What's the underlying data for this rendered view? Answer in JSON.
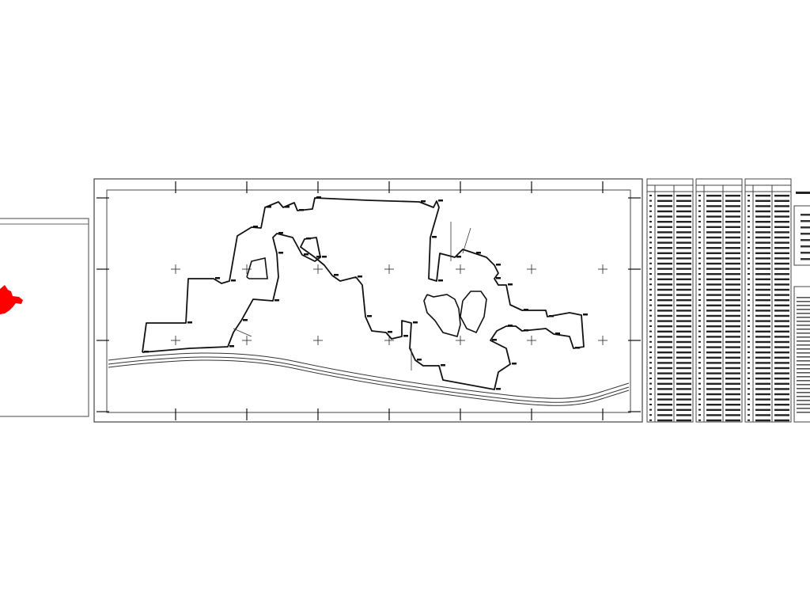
{
  "drawing": {
    "colors": {
      "line": "#111111",
      "highlight": "#ff0000",
      "frame": "#555555",
      "background": "#ffffff"
    },
    "panels": [
      "location-map",
      "site-plan",
      "coordinate-table-1",
      "coordinate-table-2",
      "coordinate-table-3",
      "legend-notes"
    ]
  }
}
